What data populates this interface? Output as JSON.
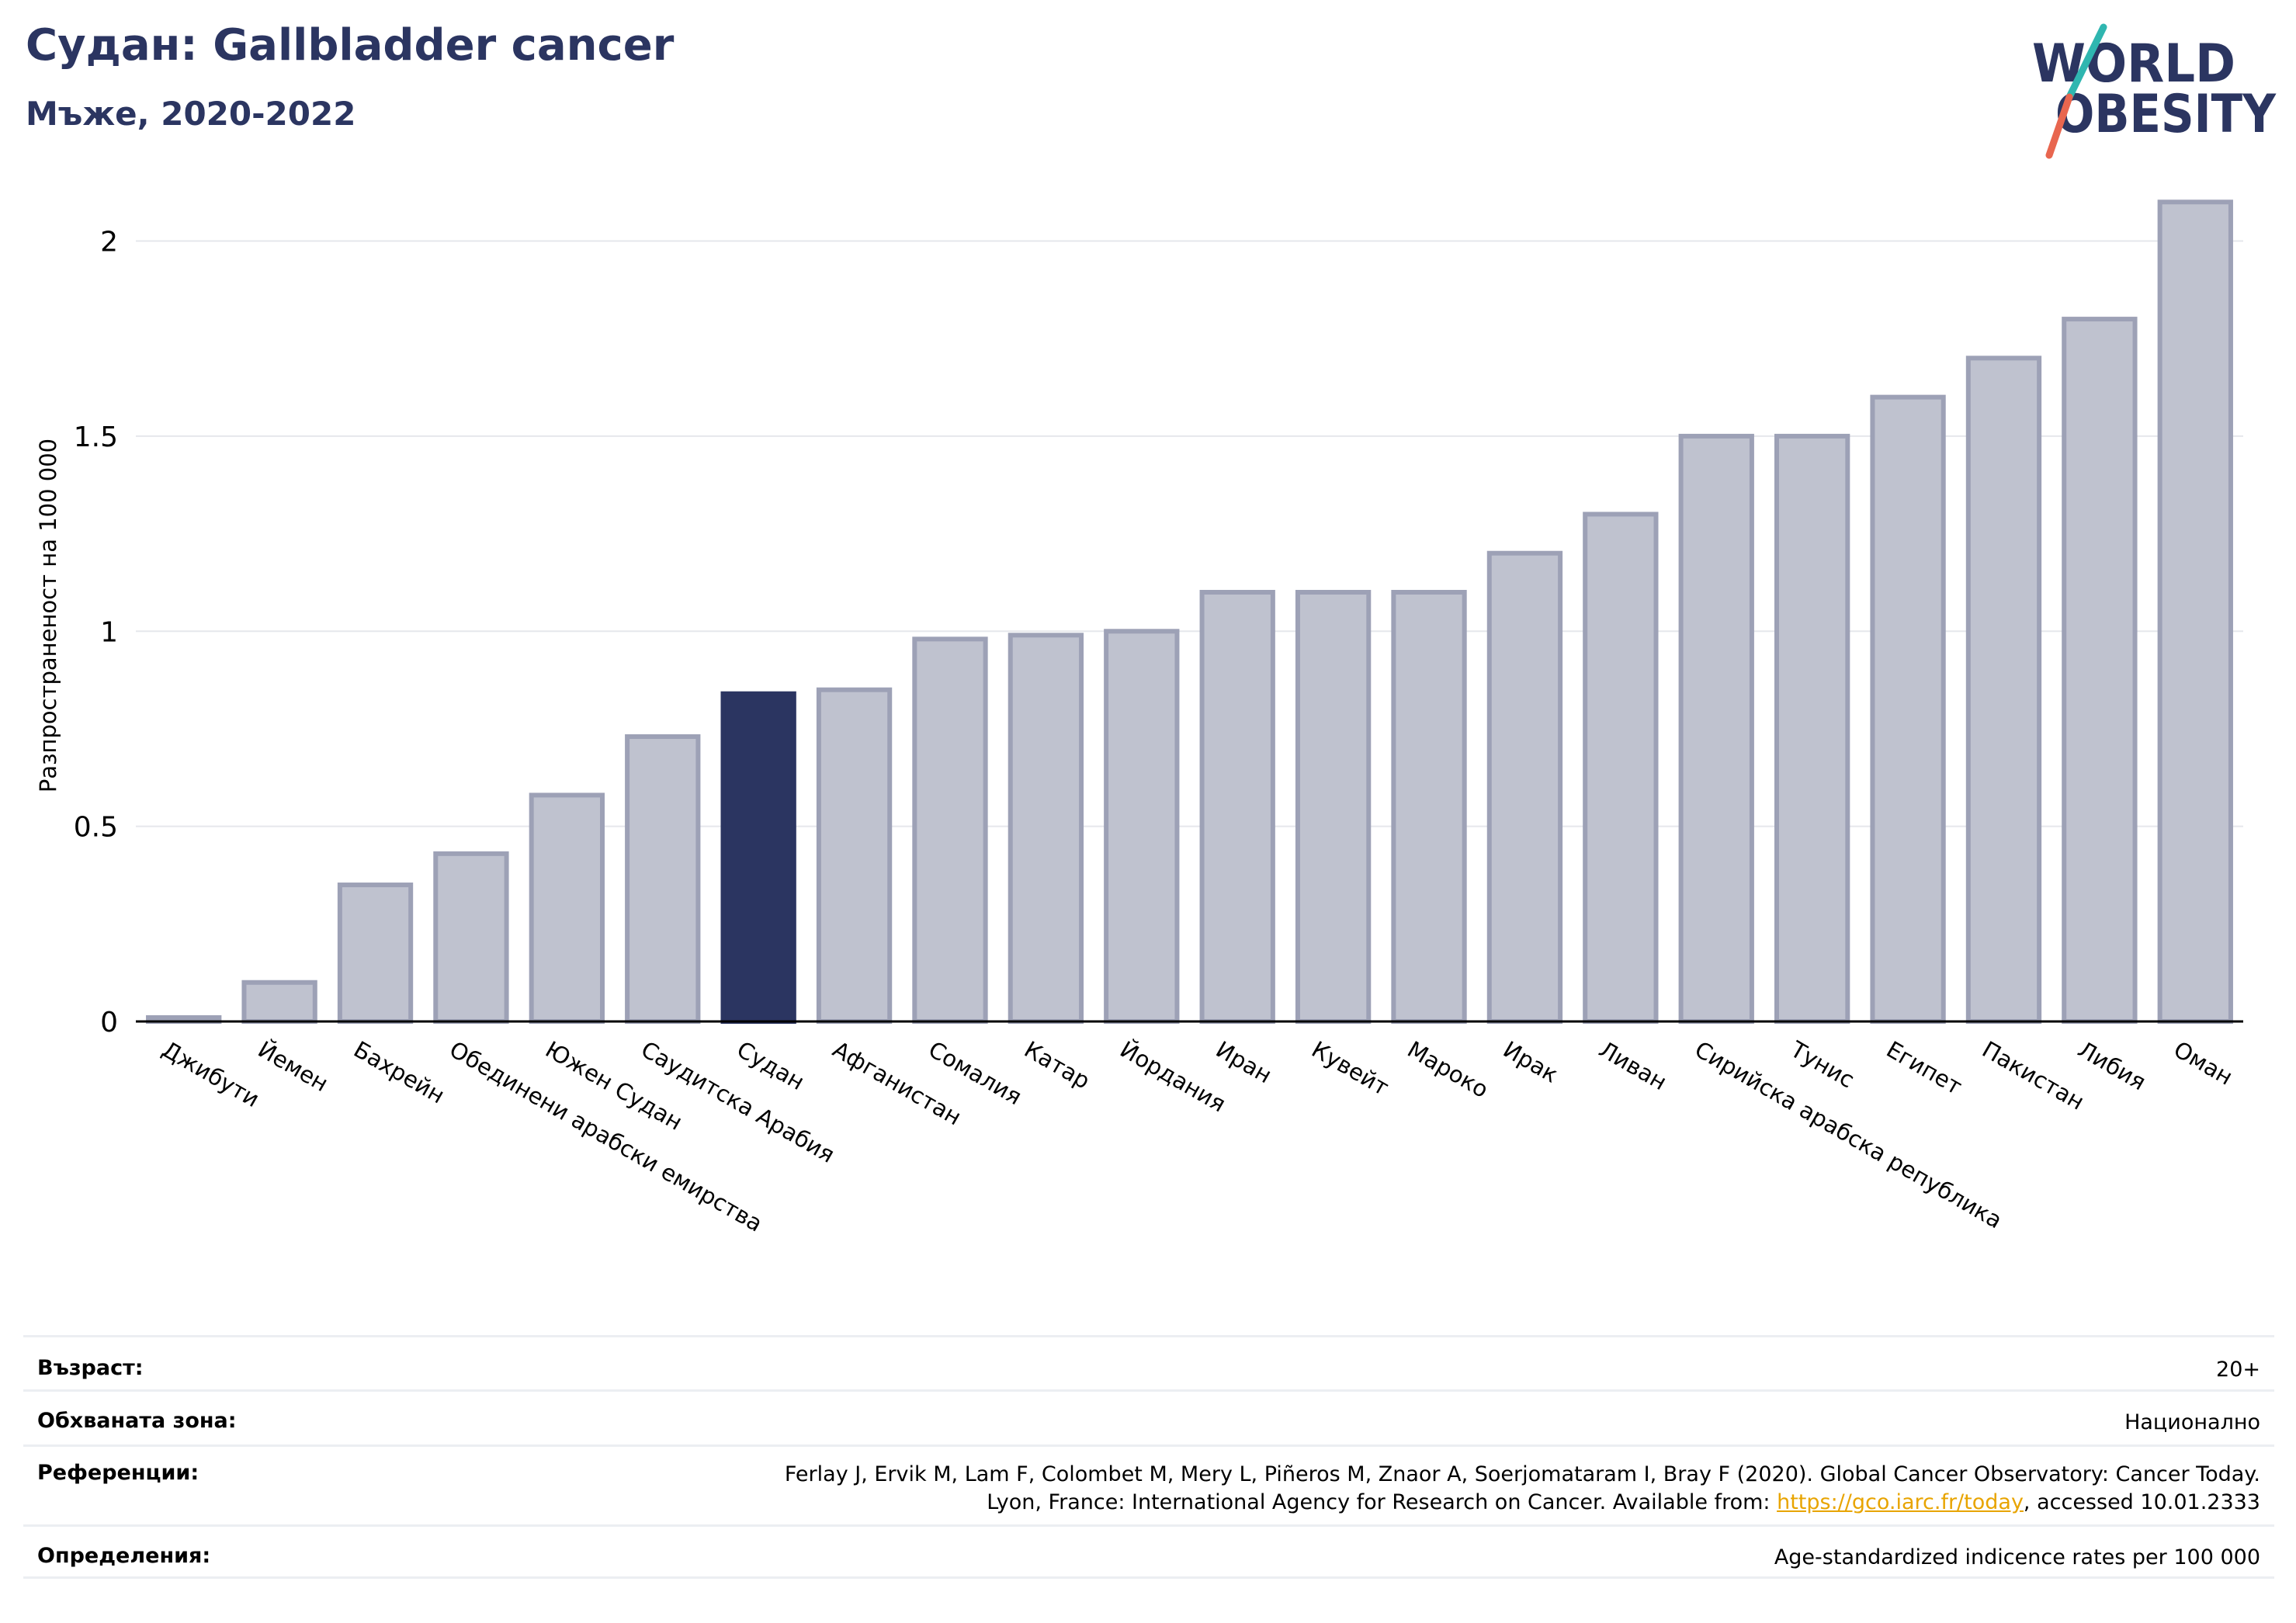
{
  "header": {
    "title": "Судан: Gallbladder cancer",
    "subtitle": "Мъже, 2020-2022"
  },
  "logo": {
    "line1": "WORLD",
    "line2": "OBESITY",
    "colors": {
      "text": "#2b3561",
      "slash_teal": "#2fb6b0",
      "slash_red": "#e8664f"
    }
  },
  "chart_data": {
    "type": "bar",
    "title": "Судан: Gallbladder cancer",
    "subtitle": "Мъже, 2020-2022",
    "ylabel": "Разпространеност  на 100 000",
    "xlabel": "",
    "ylim": [
      0,
      2.2
    ],
    "yticks": [
      0,
      0.5,
      1,
      1.5,
      2
    ],
    "ytick_labels": [
      "0",
      "0.5",
      "1",
      "1.5",
      "2"
    ],
    "grid": true,
    "legend": "none",
    "highlight": "Судан",
    "colors": {
      "bar": "#bfc2cf",
      "bar_edge": "#9da1b6",
      "highlight": "#2b3561"
    },
    "categories": [
      "Джибути",
      "Йемен",
      "Бахрейн",
      "Обединени арабски емирства",
      "Южен Судан",
      "Саудитска Арабия",
      "Судан",
      "Афганистан",
      "Сомалия",
      "Катар",
      "Йордания",
      "Иран",
      "Кувейт",
      "Мароко",
      "Ирак",
      "Ливан",
      "Сирийска арабска република",
      "Тунис",
      "Египет",
      "Пакистан",
      "Либия",
      "Оман"
    ],
    "values": [
      0.01,
      0.1,
      0.35,
      0.43,
      0.58,
      0.73,
      0.84,
      0.85,
      0.98,
      0.99,
      1.0,
      1.1,
      1.1,
      1.1,
      1.2,
      1.3,
      1.5,
      1.5,
      1.6,
      1.7,
      1.8,
      2.1
    ]
  },
  "info": {
    "rows": [
      {
        "key": "Възраст:",
        "value": "20+"
      },
      {
        "key": "Обхваната зона:",
        "value": "Национално"
      },
      {
        "key": "Референции:",
        "value_line1": "Ferlay J, Ervik M, Lam F, Colombet M, Mery L, Piñeros M, Znaor A, Soerjomataram I, Bray F (2020). Global Cancer Observatory: Cancer Today.",
        "value_line2_pre": "Lyon, France: International Agency for Research on Cancer. Available from: ",
        "value_link": "https://gco.iarc.fr/today",
        "value_line2_post": ", accessed 10.01.2333"
      },
      {
        "key": "Определения:",
        "value": "Age-standardized indicence rates per 100 000"
      }
    ]
  }
}
